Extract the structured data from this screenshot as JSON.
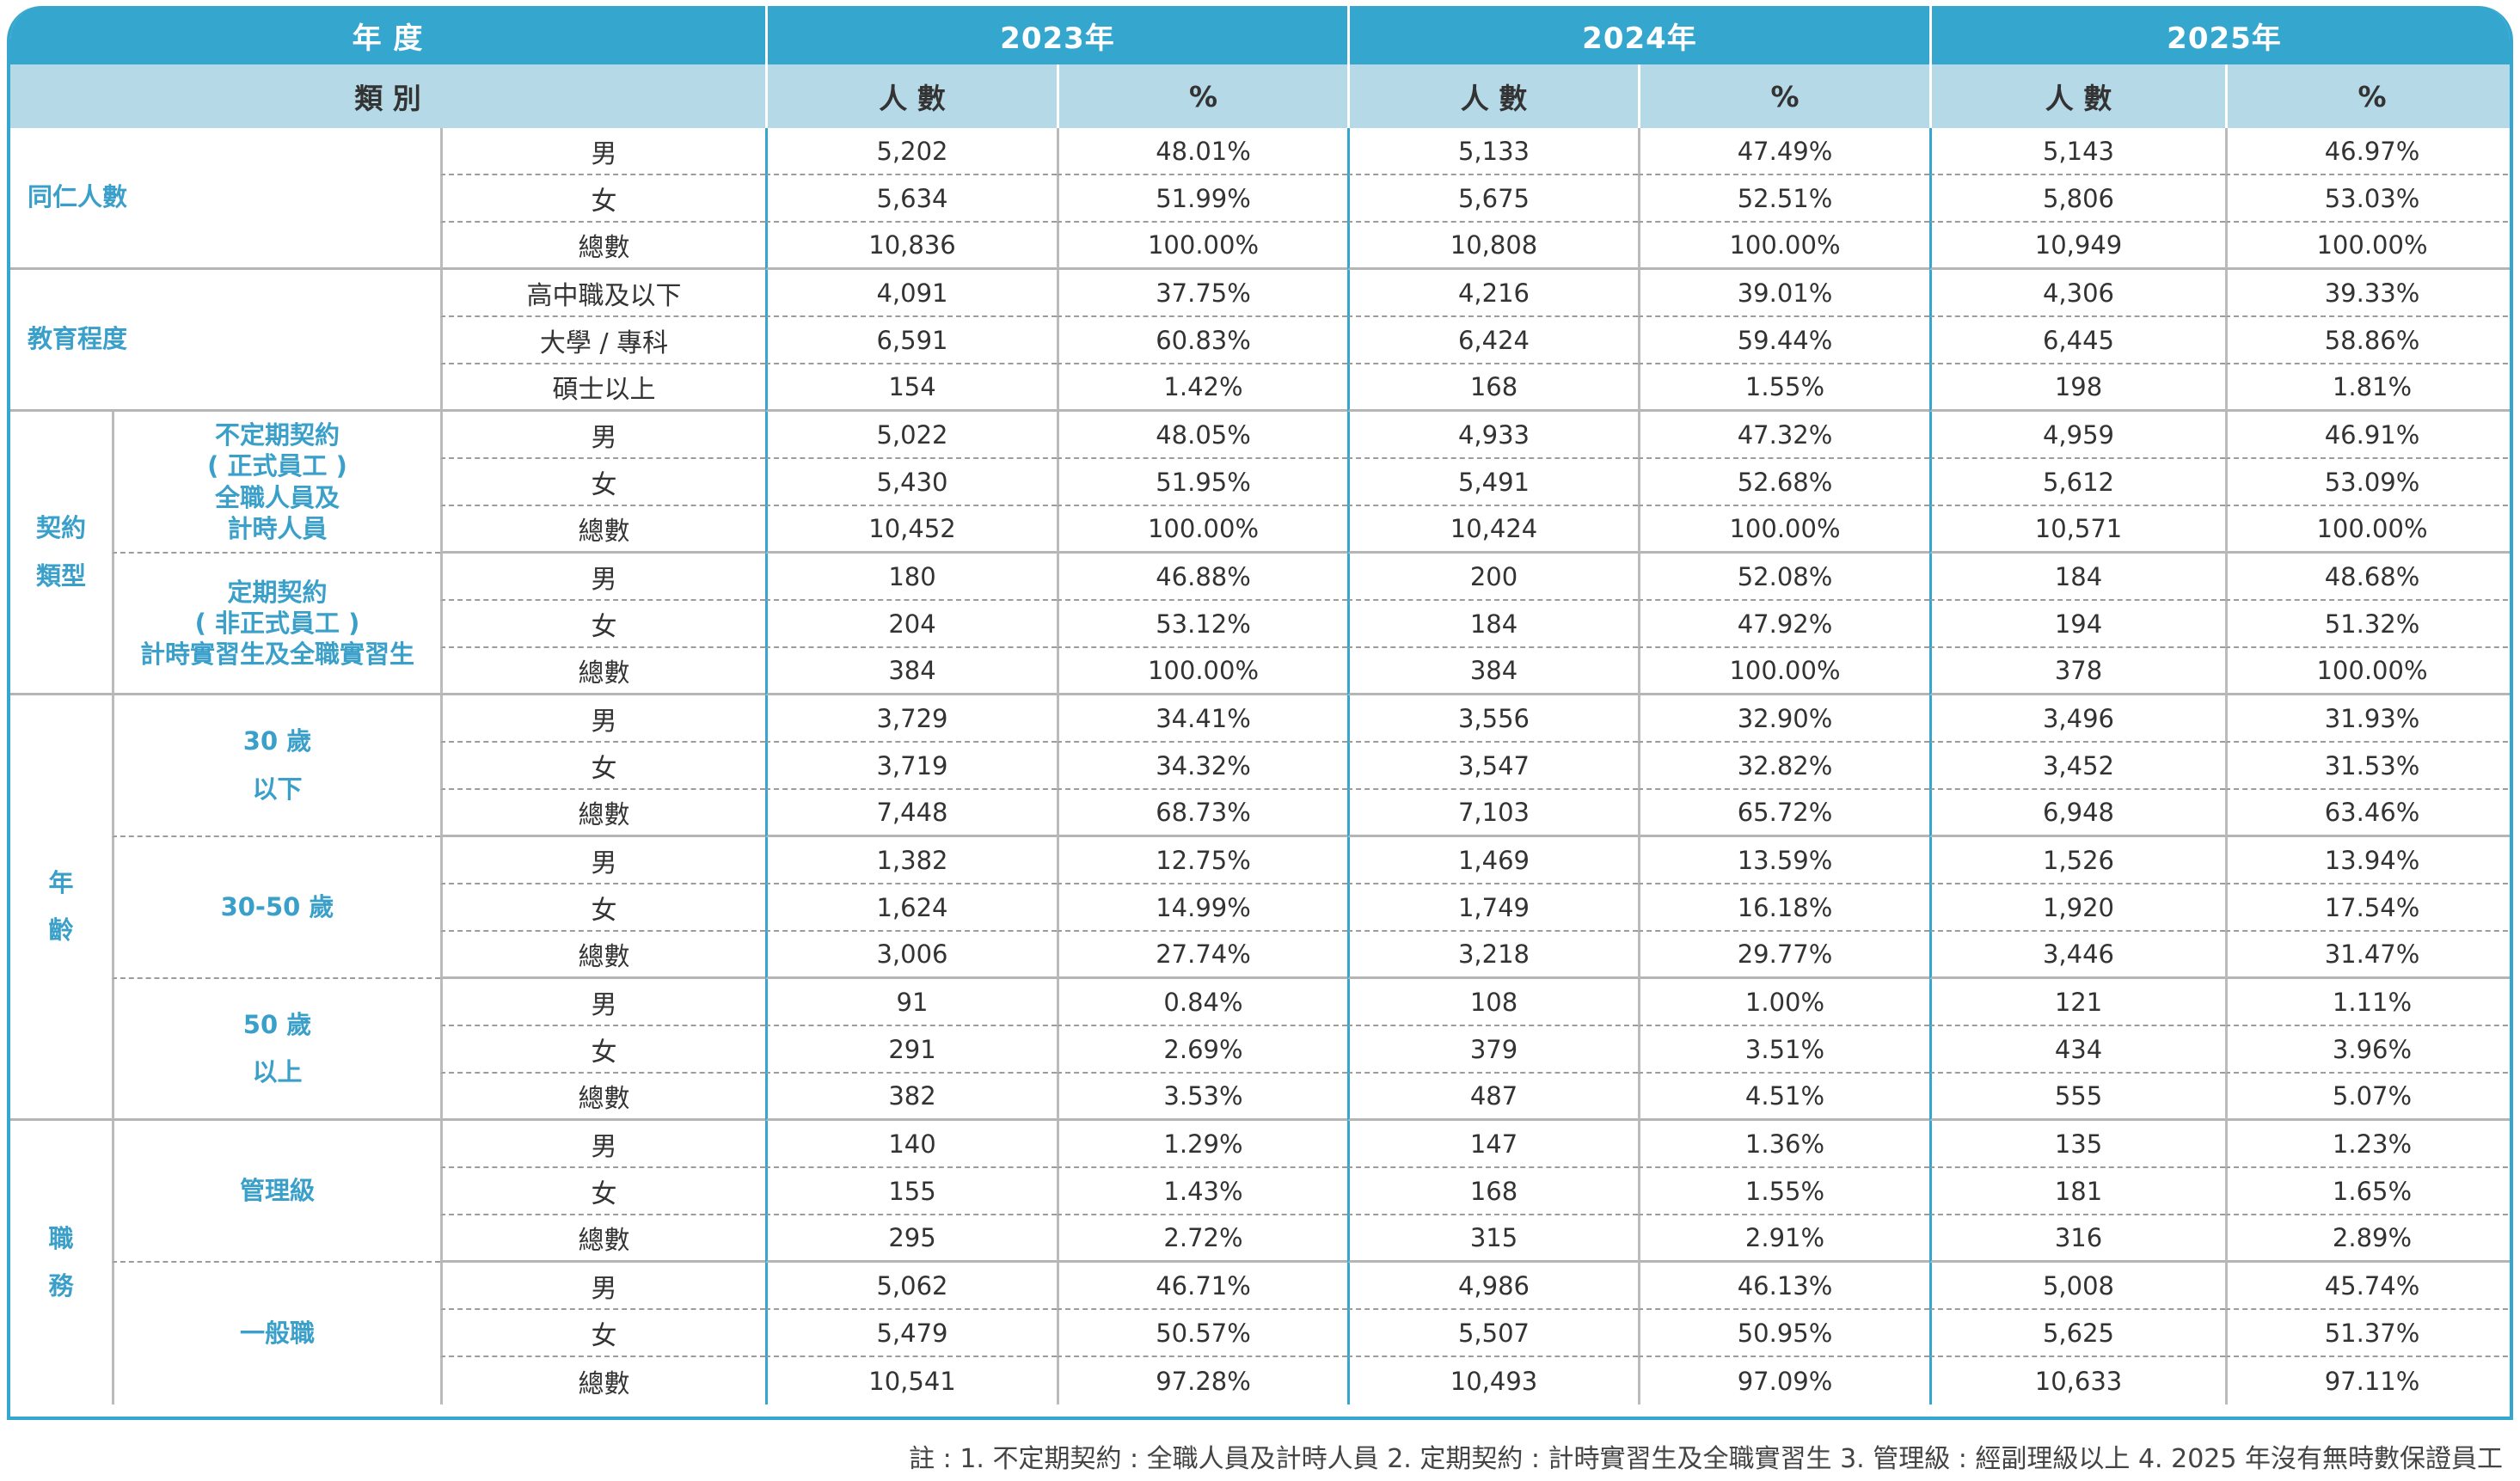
{
  "header": {
    "year_label": "年 度",
    "category_label": "類 別",
    "years": [
      "2023年",
      "2024年",
      "2025年"
    ],
    "count_label": "人 數",
    "pct_label": "%"
  },
  "sections": {
    "employees": "同仁人數",
    "education": "教育程度",
    "contract": "契約\n類型",
    "contract_permanent": "不定期契約\n( 正式員工 )\n全職人員及\n計時人員",
    "contract_fixed": "定期契約\n( 非正式員工 )\n計時實習生及全職實習生",
    "age": "年\n齡",
    "age_under30": "30 歲\n以下",
    "age_30_50": "30-50 歲",
    "age_over50": "50 歲\n以上",
    "position": "職\n務",
    "position_mgmt": "管理級",
    "position_general": "一般職"
  },
  "rows": [
    {
      "label": "男",
      "values": [
        "5,202",
        "48.01%",
        "5,133",
        "47.49%",
        "5,143",
        "46.97%"
      ]
    },
    {
      "label": "女",
      "values": [
        "5,634",
        "51.99%",
        "5,675",
        "52.51%",
        "5,806",
        "53.03%"
      ]
    },
    {
      "label": "總數",
      "values": [
        "10,836",
        "100.00%",
        "10,808",
        "100.00%",
        "10,949",
        "100.00%"
      ]
    },
    {
      "label": "高中職及以下",
      "values": [
        "4,091",
        "37.75%",
        "4,216",
        "39.01%",
        "4,306",
        "39.33%"
      ]
    },
    {
      "label": "大學 / 專科",
      "values": [
        "6,591",
        "60.83%",
        "6,424",
        "59.44%",
        "6,445",
        "58.86%"
      ]
    },
    {
      "label": "碩士以上",
      "values": [
        "154",
        "1.42%",
        "168",
        "1.55%",
        "198",
        "1.81%"
      ]
    },
    {
      "label": "男",
      "values": [
        "5,022",
        "48.05%",
        "4,933",
        "47.32%",
        "4,959",
        "46.91%"
      ]
    },
    {
      "label": "女",
      "values": [
        "5,430",
        "51.95%",
        "5,491",
        "52.68%",
        "5,612",
        "53.09%"
      ]
    },
    {
      "label": "總數",
      "values": [
        "10,452",
        "100.00%",
        "10,424",
        "100.00%",
        "10,571",
        "100.00%"
      ]
    },
    {
      "label": "男",
      "values": [
        "180",
        "46.88%",
        "200",
        "52.08%",
        "184",
        "48.68%"
      ]
    },
    {
      "label": "女",
      "values": [
        "204",
        "53.12%",
        "184",
        "47.92%",
        "194",
        "51.32%"
      ]
    },
    {
      "label": "總數",
      "values": [
        "384",
        "100.00%",
        "384",
        "100.00%",
        "378",
        "100.00%"
      ]
    },
    {
      "label": "男",
      "values": [
        "3,729",
        "34.41%",
        "3,556",
        "32.90%",
        "3,496",
        "31.93%"
      ]
    },
    {
      "label": "女",
      "values": [
        "3,719",
        "34.32%",
        "3,547",
        "32.82%",
        "3,452",
        "31.53%"
      ]
    },
    {
      "label": "總數",
      "values": [
        "7,448",
        "68.73%",
        "7,103",
        "65.72%",
        "6,948",
        "63.46%"
      ]
    },
    {
      "label": "男",
      "values": [
        "1,382",
        "12.75%",
        "1,469",
        "13.59%",
        "1,526",
        "13.94%"
      ]
    },
    {
      "label": "女",
      "values": [
        "1,624",
        "14.99%",
        "1,749",
        "16.18%",
        "1,920",
        "17.54%"
      ]
    },
    {
      "label": "總數",
      "values": [
        "3,006",
        "27.74%",
        "3,218",
        "29.77%",
        "3,446",
        "31.47%"
      ]
    },
    {
      "label": "男",
      "values": [
        "91",
        "0.84%",
        "108",
        "1.00%",
        "121",
        "1.11%"
      ]
    },
    {
      "label": "女",
      "values": [
        "291",
        "2.69%",
        "379",
        "3.51%",
        "434",
        "3.96%"
      ]
    },
    {
      "label": "總數",
      "values": [
        "382",
        "3.53%",
        "487",
        "4.51%",
        "555",
        "5.07%"
      ]
    },
    {
      "label": "男",
      "values": [
        "140",
        "1.29%",
        "147",
        "1.36%",
        "135",
        "1.23%"
      ]
    },
    {
      "label": "女",
      "values": [
        "155",
        "1.43%",
        "168",
        "1.55%",
        "181",
        "1.65%"
      ]
    },
    {
      "label": "總數",
      "values": [
        "295",
        "2.72%",
        "315",
        "2.91%",
        "316",
        "2.89%"
      ]
    },
    {
      "label": "男",
      "values": [
        "5,062",
        "46.71%",
        "4,986",
        "46.13%",
        "5,008",
        "45.74%"
      ]
    },
    {
      "label": "女",
      "values": [
        "5,479",
        "50.57%",
        "5,507",
        "50.95%",
        "5,625",
        "51.37%"
      ]
    },
    {
      "label": "總數",
      "values": [
        "10,541",
        "97.28%",
        "10,493",
        "97.09%",
        "10,633",
        "97.11%"
      ]
    }
  ],
  "footnote": "註 : 1. 不定期契約 : 全職人員及計時人員  2. 定期契約 : 計時實習生及全職實習生  3. 管理級 : 經副理級以上  4. 2025 年沒有無時數保證員工",
  "colors": {
    "header_bg": "#35a7cf",
    "subheader_bg": "#b6d9e8",
    "label_text": "#3aa0c9"
  }
}
